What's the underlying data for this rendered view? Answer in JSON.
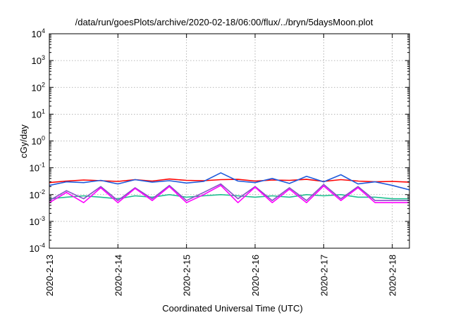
{
  "chart_data": {
    "type": "line",
    "title": "/data/run/goesPlots/archive/2020-02-18/06:00/flux/../bryn/5daysMoon.plot",
    "xlabel": "Coordinated Universal Time (UTC)",
    "ylabel": "cGy/day",
    "yscale": "log",
    "ylim": [
      0.0001,
      10000
    ],
    "y_ticks": [
      {
        "base": "10",
        "exp": "-4"
      },
      {
        "base": "10",
        "exp": "-3"
      },
      {
        "base": "10",
        "exp": "-2"
      },
      {
        "base": "10",
        "exp": "-1"
      },
      {
        "base": "10",
        "exp": "0"
      },
      {
        "base": "10",
        "exp": "1"
      },
      {
        "base": "10",
        "exp": "2"
      },
      {
        "base": "10",
        "exp": "3"
      },
      {
        "base": "10",
        "exp": "4"
      }
    ],
    "xlim": [
      "2020-02-13T00:00",
      "2020-02-18T06:00"
    ],
    "x_ticks": [
      "2020-2-13",
      "2020-2-14",
      "2020-2-15",
      "2020-2-16",
      "2020-2-17",
      "2020-2-18"
    ],
    "grid": true,
    "legend": "none",
    "series": [
      {
        "color": "#ff0000",
        "x": [
          "2020-02-13T00:00",
          "2020-02-13T06:00",
          "2020-02-13T12:00",
          "2020-02-13T18:00",
          "2020-02-14T00:00",
          "2020-02-14T06:00",
          "2020-02-14T12:00",
          "2020-02-14T18:00",
          "2020-02-15T00:00",
          "2020-02-15T06:00",
          "2020-02-15T12:00",
          "2020-02-15T18:00",
          "2020-02-16T00:00",
          "2020-02-16T06:00",
          "2020-02-16T12:00",
          "2020-02-16T18:00",
          "2020-02-17T00:00",
          "2020-02-17T06:00",
          "2020-02-17T12:00",
          "2020-02-17T18:00",
          "2020-02-18T00:00",
          "2020-02-18T06:00"
        ],
        "values": [
          0.028,
          0.032,
          0.035,
          0.033,
          0.031,
          0.036,
          0.032,
          0.038,
          0.034,
          0.033,
          0.036,
          0.037,
          0.032,
          0.035,
          0.034,
          0.037,
          0.031,
          0.036,
          0.032,
          0.03,
          0.031,
          0.029
        ]
      },
      {
        "color": "#1e5adc",
        "x": [
          "2020-02-13T00:00",
          "2020-02-13T06:00",
          "2020-02-13T12:00",
          "2020-02-13T18:00",
          "2020-02-14T00:00",
          "2020-02-14T06:00",
          "2020-02-14T12:00",
          "2020-02-14T18:00",
          "2020-02-15T00:00",
          "2020-02-15T06:00",
          "2020-02-15T12:00",
          "2020-02-15T18:00",
          "2020-02-16T00:00",
          "2020-02-16T06:00",
          "2020-02-16T12:00",
          "2020-02-16T18:00",
          "2020-02-17T00:00",
          "2020-02-17T06:00",
          "2020-02-17T12:00",
          "2020-02-17T18:00",
          "2020-02-18T00:00",
          "2020-02-18T06:00"
        ],
        "values": [
          0.022,
          0.03,
          0.028,
          0.034,
          0.025,
          0.036,
          0.029,
          0.033,
          0.027,
          0.031,
          0.065,
          0.032,
          0.028,
          0.04,
          0.026,
          0.048,
          0.03,
          0.055,
          0.025,
          0.03,
          0.022,
          0.015
        ]
      },
      {
        "color": "#1fbf8f",
        "x": [
          "2020-02-13T00:00",
          "2020-02-13T06:00",
          "2020-02-13T12:00",
          "2020-02-13T18:00",
          "2020-02-14T00:00",
          "2020-02-14T06:00",
          "2020-02-14T12:00",
          "2020-02-14T18:00",
          "2020-02-15T00:00",
          "2020-02-15T06:00",
          "2020-02-15T12:00",
          "2020-02-15T18:00",
          "2020-02-16T00:00",
          "2020-02-16T06:00",
          "2020-02-16T12:00",
          "2020-02-16T18:00",
          "2020-02-17T00:00",
          "2020-02-17T06:00",
          "2020-02-17T12:00",
          "2020-02-17T18:00",
          "2020-02-18T00:00",
          "2020-02-18T06:00"
        ],
        "values": [
          0.007,
          0.008,
          0.009,
          0.008,
          0.007,
          0.009,
          0.008,
          0.01,
          0.008,
          0.009,
          0.01,
          0.009,
          0.008,
          0.009,
          0.008,
          0.01,
          0.009,
          0.01,
          0.008,
          0.008,
          0.007,
          0.007
        ]
      },
      {
        "color": "#8a4fc8",
        "x": [
          "2020-02-13T00:00",
          "2020-02-13T06:00",
          "2020-02-13T12:00",
          "2020-02-13T18:00",
          "2020-02-14T00:00",
          "2020-02-14T06:00",
          "2020-02-14T12:00",
          "2020-02-14T18:00",
          "2020-02-15T00:00",
          "2020-02-15T06:00",
          "2020-02-15T12:00",
          "2020-02-15T18:00",
          "2020-02-16T00:00",
          "2020-02-16T06:00",
          "2020-02-16T12:00",
          "2020-02-16T18:00",
          "2020-02-17T00:00",
          "2020-02-17T06:00",
          "2020-02-17T12:00",
          "2020-02-17T18:00",
          "2020-02-18T00:00",
          "2020-02-18T06:00"
        ],
        "values": [
          0.006,
          0.014,
          0.007,
          0.02,
          0.006,
          0.018,
          0.007,
          0.022,
          0.006,
          0.012,
          0.025,
          0.007,
          0.02,
          0.006,
          0.018,
          0.006,
          0.024,
          0.007,
          0.02,
          0.006,
          0.006,
          0.006
        ]
      },
      {
        "color": "#ff00ff",
        "x": [
          "2020-02-13T00:00",
          "2020-02-13T06:00",
          "2020-02-13T12:00",
          "2020-02-13T18:00",
          "2020-02-14T00:00",
          "2020-02-14T06:00",
          "2020-02-14T12:00",
          "2020-02-14T18:00",
          "2020-02-15T00:00",
          "2020-02-15T06:00",
          "2020-02-15T12:00",
          "2020-02-15T18:00",
          "2020-02-16T00:00",
          "2020-02-16T06:00",
          "2020-02-16T12:00",
          "2020-02-16T18:00",
          "2020-02-17T00:00",
          "2020-02-17T06:00",
          "2020-02-17T12:00",
          "2020-02-17T18:00",
          "2020-02-18T00:00",
          "2020-02-18T06:00"
        ],
        "values": [
          0.005,
          0.012,
          0.005,
          0.018,
          0.005,
          0.017,
          0.006,
          0.02,
          0.005,
          0.01,
          0.022,
          0.005,
          0.019,
          0.005,
          0.016,
          0.005,
          0.021,
          0.006,
          0.018,
          0.005,
          0.005,
          0.005
        ]
      }
    ]
  }
}
